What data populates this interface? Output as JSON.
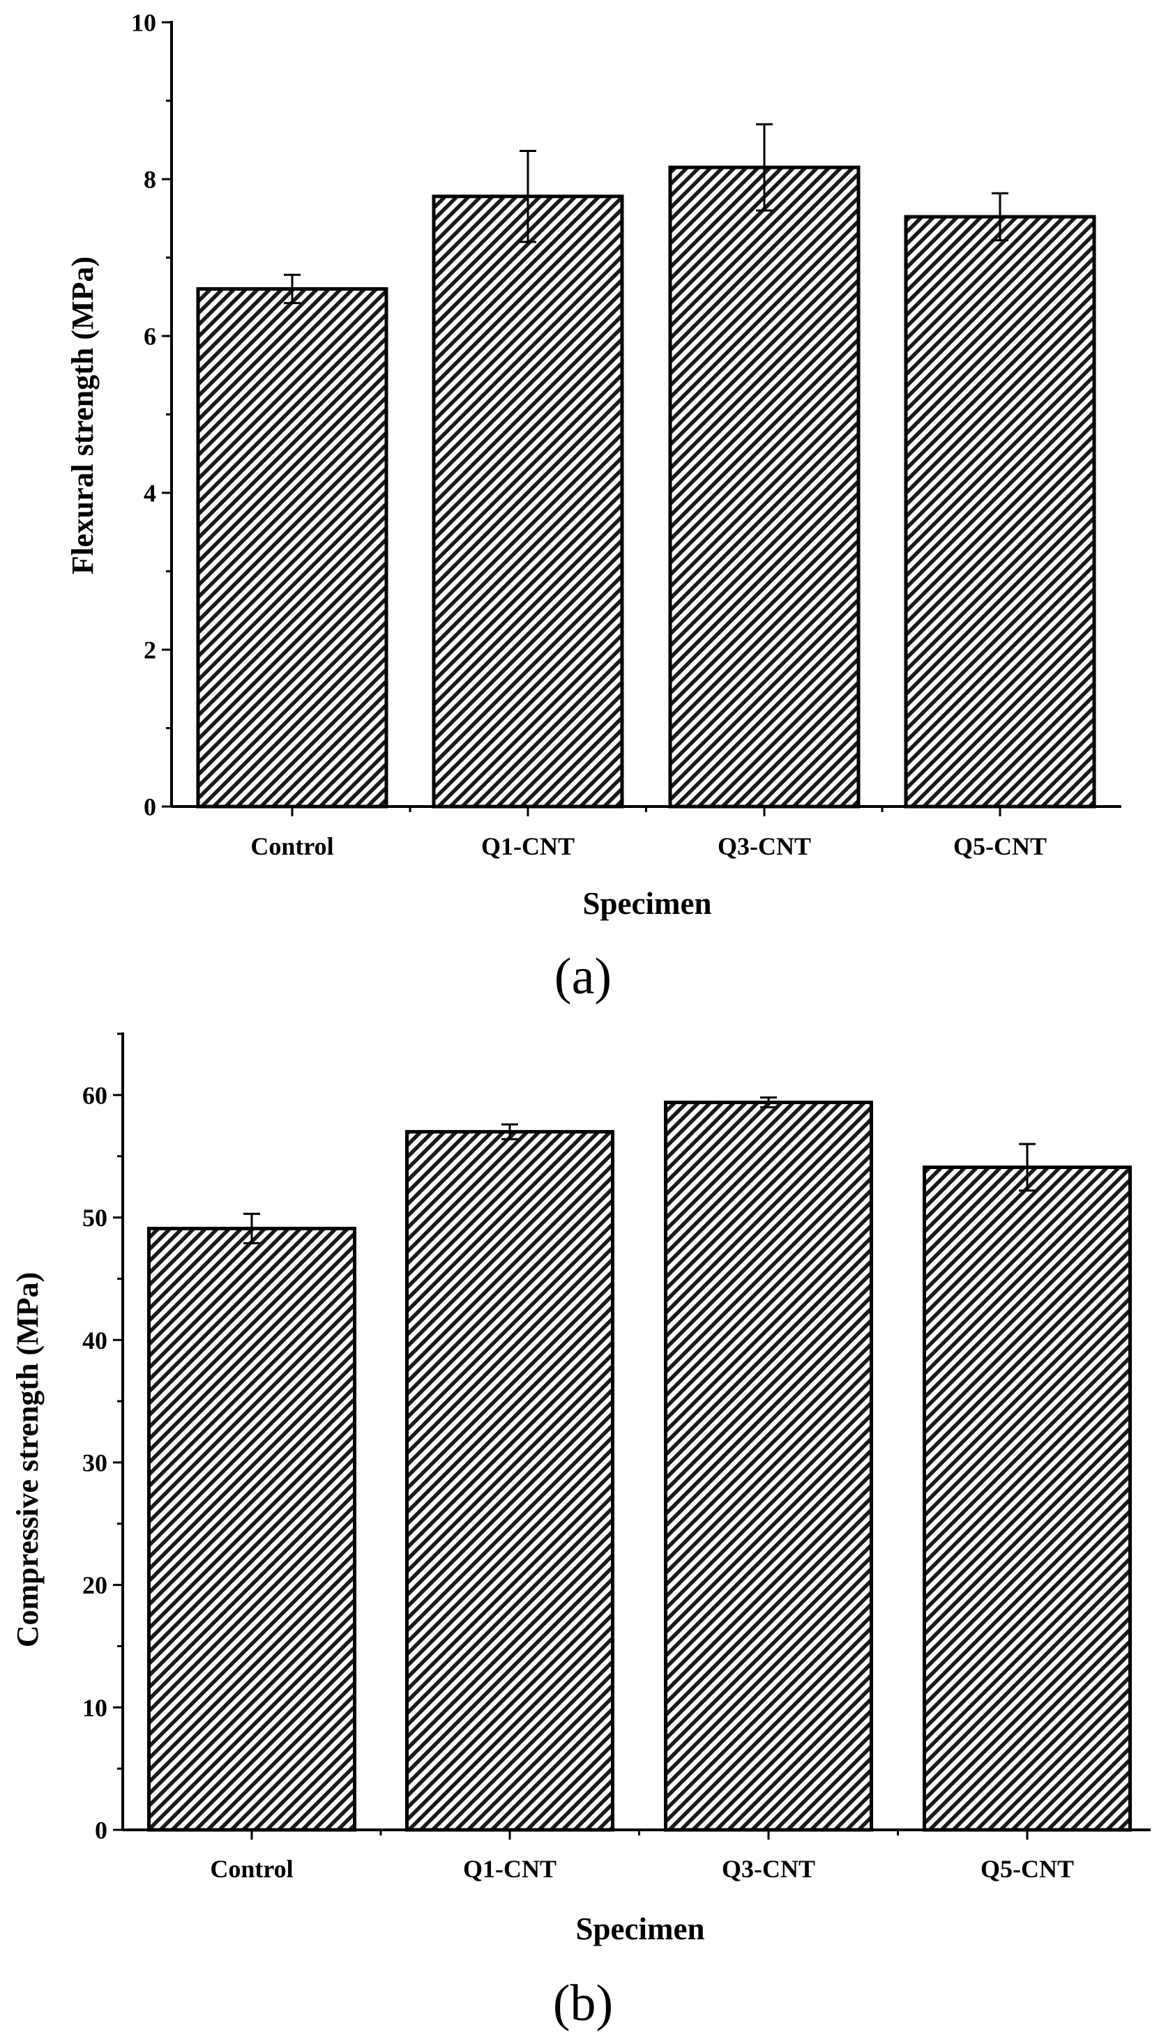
{
  "chart_data": [
    {
      "type": "bar",
      "panel_label": "(a)",
      "categories": [
        "Control",
        "Q1-CNT",
        "Q3-CNT",
        "Q5-CNT"
      ],
      "values": [
        6.6,
        7.78,
        8.15,
        7.52
      ],
      "errors": [
        0.18,
        0.58,
        0.55,
        0.3
      ],
      "xlabel": "Specimen",
      "ylabel": "Flexural strength (MPa)",
      "ylim": [
        0,
        10
      ],
      "yticks": [
        "0",
        "2",
        "4",
        "6",
        "8",
        "10"
      ],
      "bar_fill": "hatched",
      "bar_color": "#000000"
    },
    {
      "type": "bar",
      "panel_label": "(b)",
      "categories": [
        "Control",
        "Q1-CNT",
        "Q3-CNT",
        "Q5-CNT"
      ],
      "values": [
        49.1,
        57,
        59.4,
        54.1
      ],
      "errors": [
        1.2,
        0.6,
        0.4,
        1.9
      ],
      "xlabel": "Specimen",
      "ylabel": "Compressive strength (MPa)",
      "ylim": [
        0,
        65
      ],
      "yticks": [
        "0",
        "10",
        "20",
        "30",
        "40",
        "50",
        "60"
      ],
      "bar_fill": "hatched",
      "bar_color": "#000000"
    }
  ]
}
